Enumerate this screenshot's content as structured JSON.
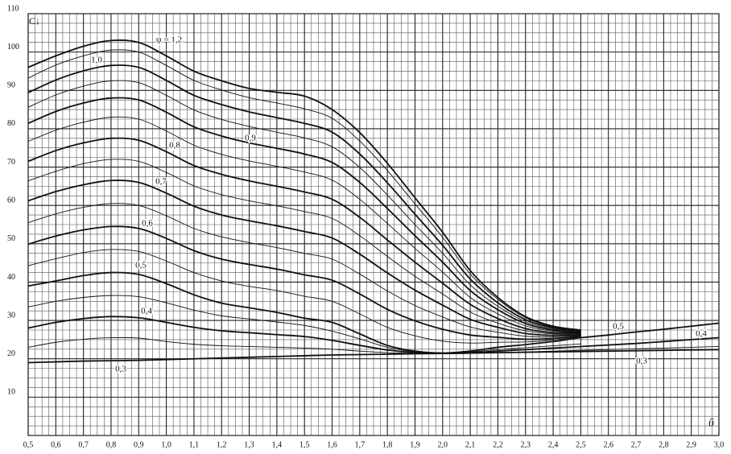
{
  "chart_data": {
    "type": "line",
    "y_label": "C↓",
    "x_label": "ῡ",
    "xlim": [
      0.5,
      3.0
    ],
    "ylim": [
      0,
      110
    ],
    "xticks": [
      {
        "value": 0.5,
        "label": "0,5"
      },
      {
        "value": 0.6,
        "label": "0,6"
      },
      {
        "value": 0.7,
        "label": "0,7"
      },
      {
        "value": 0.8,
        "label": "0,8"
      },
      {
        "value": 0.9,
        "label": "0,9"
      },
      {
        "value": 1.0,
        "label": "1,0"
      },
      {
        "value": 1.1,
        "label": "1,1"
      },
      {
        "value": 1.2,
        "label": "1,2"
      },
      {
        "value": 1.3,
        "label": "1,3"
      },
      {
        "value": 1.4,
        "label": "1,4"
      },
      {
        "value": 1.5,
        "label": "1,5"
      },
      {
        "value": 1.6,
        "label": "1,6"
      },
      {
        "value": 1.7,
        "label": "1,7"
      },
      {
        "value": 1.8,
        "label": "1,8"
      },
      {
        "value": 1.9,
        "label": "1,9"
      },
      {
        "value": 2.0,
        "label": "2,0"
      },
      {
        "value": 2.1,
        "label": "2,1"
      },
      {
        "value": 2.2,
        "label": "2,2"
      },
      {
        "value": 2.3,
        "label": "2,3"
      },
      {
        "value": 2.4,
        "label": "2,4"
      },
      {
        "value": 2.5,
        "label": "2,5"
      },
      {
        "value": 2.6,
        "label": "2,6"
      },
      {
        "value": 2.7,
        "label": "2,7"
      },
      {
        "value": 2.8,
        "label": "2,8"
      },
      {
        "value": 2.9,
        "label": "2,9"
      },
      {
        "value": 3.0,
        "label": "3,0"
      }
    ],
    "yticks": [
      10,
      20,
      30,
      40,
      50,
      60,
      70,
      80,
      90,
      100,
      110
    ],
    "grid": true,
    "color": "#111111",
    "x": [
      0.5,
      0.6,
      0.7,
      0.8,
      0.9,
      1.0,
      1.1,
      1.2,
      1.3,
      1.4,
      1.5,
      1.6,
      1.7,
      1.8,
      1.9,
      2.0,
      2.1,
      2.2,
      2.3,
      2.4,
      2.5,
      2.6,
      2.7,
      2.8,
      2.9,
      3.0
    ],
    "series": [
      {
        "name": "0,3",
        "values": [
          19,
          19.2,
          19.4,
          19.5,
          19.6,
          19.8,
          20,
          20.2,
          20.4,
          20.6,
          20.8,
          21,
          21.1,
          21.2,
          21.3,
          21.4,
          21.5,
          21.6,
          21.7,
          21.8,
          21.9,
          22,
          22.1,
          22.2,
          22.3,
          22.4
        ]
      },
      {
        "values": [
          23,
          24.3,
          25.1,
          25.5,
          25.4,
          24.5,
          23.8,
          23.4,
          23.2,
          23,
          22.8,
          22.5,
          22,
          21.6,
          21.4,
          21.3,
          21.4,
          21.6,
          21.8,
          22,
          22.2,
          22.4,
          22.6,
          22.8,
          23,
          23.2
        ]
      },
      {
        "name": "0,4",
        "values": [
          28,
          29.5,
          30.5,
          31,
          30.7,
          29.5,
          28.2,
          27.3,
          26.8,
          26.3,
          25.8,
          24.8,
          23.5,
          22.3,
          21.6,
          21.4,
          21.6,
          22,
          22.4,
          22.8,
          23.2,
          23.6,
          24,
          24.5,
          25,
          25.5
        ]
      },
      {
        "values": [
          33.5,
          35,
          36,
          36.5,
          36.2,
          34.6,
          32.7,
          31.2,
          30.4,
          29.6,
          28.7,
          27.2,
          25.2,
          23,
          21.8,
          21.4,
          21.8,
          22.4,
          22.9,
          23.4,
          23.9,
          null,
          null,
          null,
          null,
          null
        ]
      },
      {
        "name": "0,5",
        "values": [
          39,
          40.3,
          41.7,
          42.5,
          42,
          39.6,
          36.7,
          34.5,
          33.3,
          32.1,
          30.6,
          29.5,
          26.5,
          23.5,
          22,
          21.5,
          22,
          23,
          23.7,
          24.5,
          25.5,
          26.2,
          27,
          27.7,
          28.5,
          29.3
        ]
      },
      {
        "values": [
          44.3,
          46.1,
          47.7,
          48.5,
          48,
          45.5,
          42.5,
          40.3,
          38.9,
          37.8,
          36.3,
          35,
          31.7,
          28.2,
          26,
          24.6,
          24.1,
          24.3,
          24.4,
          24.9,
          25.7,
          null,
          null,
          null,
          null,
          null
        ]
      },
      {
        "name": "0,6",
        "values": [
          49.9,
          52,
          53.6,
          54.5,
          54,
          51.4,
          48.2,
          46,
          44.6,
          43.4,
          41.9,
          40.5,
          36.9,
          32.9,
          29.9,
          27.7,
          26.2,
          25.6,
          25.1,
          25.3,
          25.9,
          null,
          null,
          null,
          null,
          null
        ]
      },
      {
        "values": [
          55.5,
          57.8,
          59.5,
          60.5,
          60,
          57.3,
          54,
          51.8,
          50.3,
          49,
          47.5,
          46,
          42.1,
          37.7,
          33.9,
          30.9,
          28.3,
          26.9,
          25.9,
          25.7,
          26.1,
          null,
          null,
          null,
          null,
          null
        ]
      },
      {
        "name": "0,7",
        "values": [
          61.2,
          63.6,
          65.4,
          66.5,
          66,
          63.2,
          59.8,
          57.5,
          56,
          54.7,
          53.2,
          51.5,
          47.3,
          42.4,
          37.9,
          34,
          30.3,
          28.2,
          26.6,
          26.1,
          26.3,
          null,
          null,
          null,
          null,
          null
        ]
      },
      {
        "values": [
          66.4,
          68.9,
          70.9,
          72,
          71.5,
          68.6,
          65.1,
          62.8,
          61.2,
          59.9,
          58.4,
          56.6,
          52.1,
          46.7,
          41.5,
          36.9,
          32.2,
          29.3,
          27.3,
          26.5,
          26.5,
          null,
          null,
          null,
          null,
          null
        ]
      },
      {
        "name": "0,8",
        "values": [
          71.5,
          74.3,
          76.3,
          77.5,
          77,
          74,
          70.4,
          68.1,
          66.4,
          65,
          63.5,
          61.6,
          56.9,
          51,
          45.2,
          39.7,
          34.2,
          30.5,
          27.9,
          26.8,
          26.7,
          null,
          null,
          null,
          null,
          null
        ]
      },
      {
        "values": [
          76.7,
          79.6,
          81.7,
          83,
          82.5,
          79.4,
          75.7,
          73.3,
          71.6,
          70.2,
          68.7,
          66.6,
          61.6,
          55.3,
          48.8,
          42.6,
          36,
          31.7,
          28.6,
          27.2,
          26.8,
          null,
          null,
          null,
          null,
          null
        ]
      },
      {
        "name": "0,9",
        "values": [
          81.4,
          84.5,
          86.7,
          88,
          87.5,
          84.3,
          80.5,
          78.1,
          76.3,
          74.9,
          73.4,
          71.2,
          66,
          59.2,
          52.1,
          45.2,
          37.8,
          32.8,
          29.2,
          27.5,
          27,
          null,
          null,
          null,
          null,
          null
        ]
      },
      {
        "values": [
          85.6,
          88.8,
          91.1,
          92.5,
          92,
          88.7,
          84.9,
          82.4,
          80.6,
          79.1,
          77.6,
          75.3,
          69.9,
          62.7,
          55,
          47.5,
          39.3,
          33.7,
          29.7,
          27.8,
          27.2,
          null,
          null,
          null,
          null,
          null
        ]
      },
      {
        "name": "1,0",
        "values": [
          89.4,
          92.7,
          95.1,
          96.5,
          96,
          92.6,
          88.7,
          86.3,
          84.4,
          82.9,
          81.4,
          79.1,
          73.4,
          65.9,
          57.7,
          49.6,
          40.8,
          34.6,
          30.2,
          28.1,
          27.3,
          null,
          null,
          null,
          null,
          null
        ]
      },
      {
        "values": [
          93.2,
          96.6,
          99,
          100.5,
          100,
          96.5,
          92.6,
          90.1,
          88.1,
          86.7,
          85.2,
          82.7,
          76.8,
          69.1,
          60.4,
          51.7,
          42.1,
          35.5,
          30.7,
          28.3,
          27.4,
          null,
          null,
          null,
          null,
          null
        ]
      },
      {
        "name": "ψ = 1,2",
        "values": [
          96,
          99,
          101.5,
          103,
          102.5,
          99,
          95,
          92.5,
          90.5,
          89.5,
          88.5,
          85,
          79,
          71,
          62,
          53,
          43,
          36,
          31,
          28.5,
          27.5,
          null,
          null,
          null,
          null,
          null
        ]
      }
    ]
  }
}
